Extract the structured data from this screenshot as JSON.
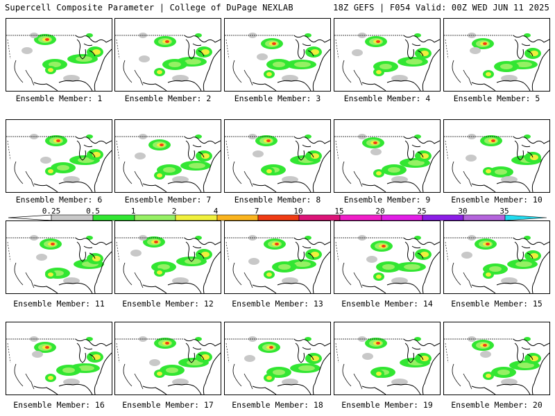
{
  "header": {
    "left": "Supercell Composite Parameter | College of DuPage NEXLAB",
    "right": "18Z GEFS | F054 Valid: 00Z WED JUN 11 2025"
  },
  "members": [
    {
      "label": "Ensemble Member: 1"
    },
    {
      "label": "Ensemble Member: 2"
    },
    {
      "label": "Ensemble Member: 3"
    },
    {
      "label": "Ensemble Member: 4"
    },
    {
      "label": "Ensemble Member: 5"
    },
    {
      "label": "Ensemble Member: 6"
    },
    {
      "label": "Ensemble Member: 7"
    },
    {
      "label": "Ensemble Member: 8"
    },
    {
      "label": "Ensemble Member: 9"
    },
    {
      "label": "Ensemble Member: 10"
    },
    {
      "label": "Ensemble Member: 11"
    },
    {
      "label": "Ensemble Member: 12"
    },
    {
      "label": "Ensemble Member: 13"
    },
    {
      "label": "Ensemble Member: 14"
    },
    {
      "label": "Ensemble Member: 15"
    },
    {
      "label": "Ensemble Member: 16"
    },
    {
      "label": "Ensemble Member: 17"
    },
    {
      "label": "Ensemble Member: 18"
    },
    {
      "label": "Ensemble Member: 19"
    },
    {
      "label": "Ensemble Member: 20"
    }
  ],
  "colorbar": {
    "labels": [
      "0.25",
      "0.5",
      "1",
      "2",
      "4",
      "7",
      "10",
      "15",
      "20",
      "25",
      "30",
      "35"
    ],
    "colors": [
      "#c8c8c8",
      "#32e632",
      "#96f064",
      "#f0f03c",
      "#fab41e",
      "#f03c14",
      "#dc1478",
      "#f01ec8",
      "#e11ee6",
      "#8c1ee6",
      "#b464dc",
      "#20dcf0"
    ]
  }
}
